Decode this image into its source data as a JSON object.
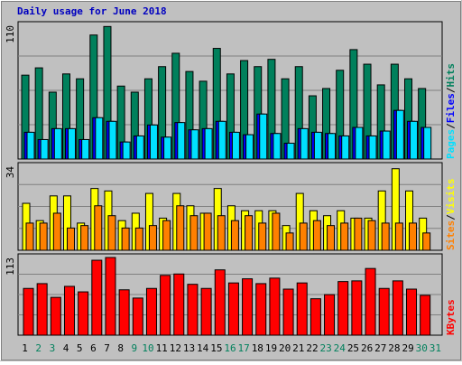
{
  "title": "Daily usage for June 2018",
  "legend_separator": "/",
  "chart_data": [
    {
      "type": "bar",
      "ylim": [
        0,
        110
      ],
      "yticks": [
        110
      ],
      "series": [
        {
          "name": "Hits",
          "color": "#00805c",
          "values": [
            69,
            75,
            55,
            70,
            66,
            102,
            109,
            60,
            55,
            66,
            76,
            87,
            72,
            64,
            91,
            70,
            81,
            76,
            82,
            66,
            76,
            52,
            58,
            73,
            90,
            78,
            61,
            78,
            66,
            58,
            null
          ]
        },
        {
          "name": "Files",
          "color": "#0000ff",
          "values": [
            22,
            16,
            25,
            25,
            16,
            34,
            31,
            14,
            19,
            28,
            18,
            30,
            24,
            25,
            31,
            22,
            20,
            37,
            21,
            13,
            25,
            22,
            21,
            19,
            26,
            19,
            23,
            40,
            31,
            26,
            null
          ]
        },
        {
          "name": "Pages",
          "color": "#00e0ff",
          "values": [
            22,
            16,
            25,
            25,
            16,
            34,
            31,
            14,
            19,
            28,
            18,
            30,
            24,
            25,
            31,
            22,
            20,
            37,
            21,
            13,
            25,
            22,
            21,
            19,
            26,
            19,
            23,
            40,
            31,
            26,
            null
          ]
        }
      ]
    },
    {
      "type": "bar",
      "ylim": [
        0,
        34
      ],
      "yticks": [
        34
      ],
      "series": [
        {
          "name": "Visits",
          "color": "#ffff00",
          "values": [
            19,
            12,
            22,
            22,
            11,
            25,
            24,
            12,
            15,
            23,
            13,
            23,
            18,
            15,
            25,
            18,
            16,
            16,
            16,
            10,
            23,
            16,
            14,
            16,
            13,
            13,
            24,
            33,
            24,
            13,
            null
          ]
        },
        {
          "name": "Sites",
          "color": "#ff8000",
          "values": [
            11,
            11,
            15,
            9,
            10,
            18,
            14,
            9,
            9,
            10,
            12,
            18,
            14,
            15,
            14,
            12,
            14,
            11,
            15,
            7,
            11,
            12,
            10,
            11,
            13,
            12,
            11,
            11,
            11,
            7,
            null
          ]
        }
      ]
    },
    {
      "type": "bar",
      "ylim": [
        0,
        113
      ],
      "yticks": [
        113
      ],
      "series": [
        {
          "name": "KBytes",
          "color": "#ff0000",
          "values": [
            68,
            75,
            55,
            71,
            63,
            109,
            113,
            66,
            54,
            68,
            87,
            89,
            74,
            68,
            95,
            76,
            82,
            75,
            83,
            67,
            76,
            53,
            59,
            78,
            79,
            97,
            68,
            79,
            67,
            58,
            null
          ]
        }
      ],
      "categories": [
        "1",
        "2",
        "3",
        "4",
        "5",
        "6",
        "7",
        "8",
        "9",
        "10",
        "11",
        "12",
        "13",
        "14",
        "15",
        "16",
        "17",
        "18",
        "19",
        "20",
        "21",
        "22",
        "23",
        "24",
        "25",
        "26",
        "27",
        "28",
        "29",
        "30",
        "31"
      ],
      "category_colors": [
        "#000000",
        "#00805c",
        "#00805c",
        "#000000",
        "#000000",
        "#000000",
        "#000000",
        "#000000",
        "#00805c",
        "#00805c",
        "#000000",
        "#000000",
        "#000000",
        "#000000",
        "#000000",
        "#00805c",
        "#00805c",
        "#000000",
        "#000000",
        "#000000",
        "#000000",
        "#000000",
        "#00805c",
        "#00805c",
        "#000000",
        "#000000",
        "#000000",
        "#000000",
        "#000000",
        "#00805c",
        "#00805c"
      ]
    }
  ]
}
